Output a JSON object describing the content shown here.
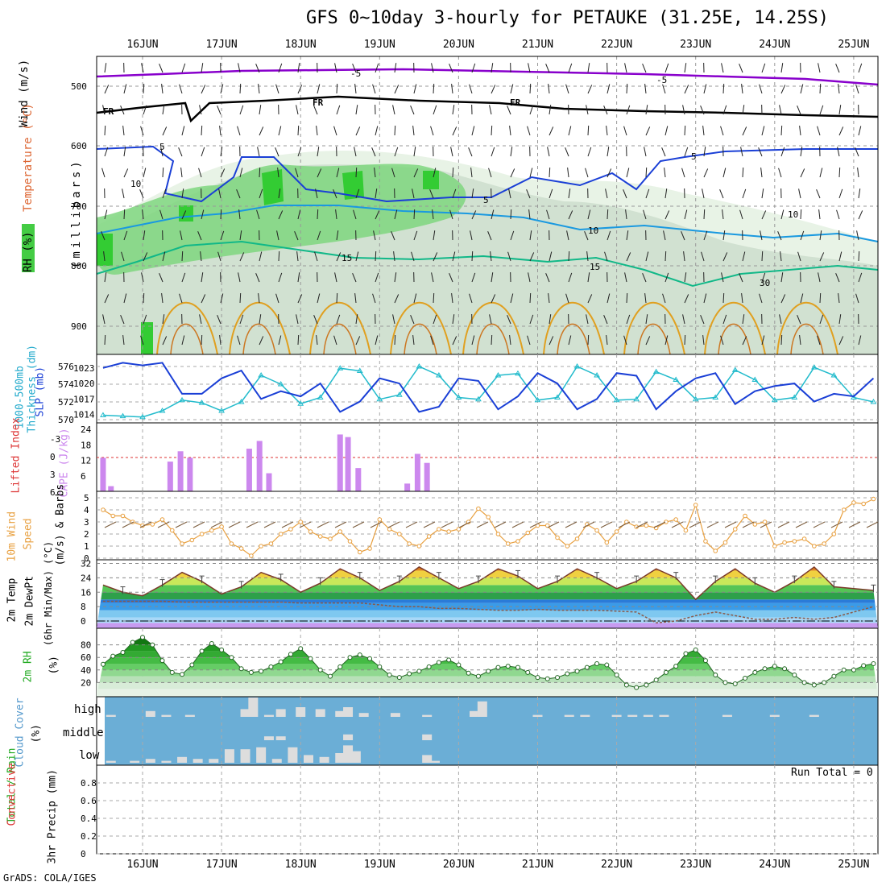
{
  "header": {
    "title": "GFS 0~10day 3-hourly for PETAUKE (31.25E, 14.25S)",
    "footer": "GrADS: COLA/IGES"
  },
  "dates": [
    "16JUN",
    "17JUN",
    "18JUN",
    "19JUN",
    "20JUN",
    "21JUN",
    "22JUN",
    "23JUN",
    "24JUN",
    "25JUN"
  ],
  "colors": {
    "rh_green": "#33cc33",
    "temp_purple": "#8800cc",
    "freezing": "#000000",
    "iso5": "#1a3fd6",
    "iso10": "#1a99e0",
    "iso15": "#11b888",
    "iso_warm": "#e0a020",
    "thickness": "#22bbcc",
    "slp": "#1a3fd6",
    "cape": "#cc88ee",
    "lifted": "#dd3333",
    "wind10m": "#e8a040",
    "cloud_bg": "#6baed6",
    "cloud_bar": "#dddddd"
  },
  "panels": {
    "upper": {
      "ylabel_wind": "Wind (m/s)",
      "ylabel_temp": "Temperature (°C)",
      "ylabel_rh": "RH (%)",
      "ylabel_mb": "(millibars)",
      "levels": [
        "500",
        "600",
        "700",
        "800",
        "900"
      ],
      "contour_labels": {
        "m5": "-5",
        "fr": "FR",
        "p5": "5",
        "p10": "10",
        "p15": "15",
        "rh10": "10",
        "rh30": "30"
      }
    },
    "thickness": {
      "ylabel_left": "1000-500mb",
      "ylabel_left2": "Thickness (dm)",
      "ylabel_right": "SLP (mb)",
      "ticks_left": [
        "576",
        "574",
        "572",
        "570"
      ],
      "ticks_right": [
        "1023",
        "1020",
        "1017",
        "1014"
      ]
    },
    "cape": {
      "ylabel_left": "Lifted Index",
      "ylabel_right": "CAPE (J/kg)",
      "ticks_left": [
        "-3",
        "0",
        "3",
        "6"
      ],
      "ticks_right": [
        "24",
        "18",
        "12",
        "6"
      ]
    },
    "wind10m": {
      "ylabel1": "10m Wind",
      "ylabel2": "Speed",
      "ylabel3": "(m/s) & Barbs",
      "ticks": [
        "5",
        "4",
        "3",
        "2",
        "1",
        "0"
      ]
    },
    "temp2m": {
      "ylabel1": "2m Temp",
      "ylabel2": "2m DewPt",
      "ylabel3": "(6hr Min/Max) (°C)",
      "ticks": [
        "32",
        "24",
        "16",
        "8",
        "0"
      ]
    },
    "rh2m": {
      "ylabel1": "2m RH",
      "ylabel2": "(%)",
      "ticks": [
        "80",
        "60",
        "40",
        "20"
      ]
    },
    "cloud": {
      "ylabel1": "Cloud Cover",
      "ylabel2": "(%)",
      "rows": [
        "high",
        "middle",
        "low"
      ]
    },
    "precip": {
      "ylabel1": "Total / Rain",
      "ylabel2": "Convective",
      "ylabel3": "3hr Precip (mm)",
      "ticks": [
        "0.8",
        "0.6",
        "0.4",
        "0.2",
        "0"
      ],
      "run_total": "Run Total = 0"
    }
  },
  "chart_data": [
    {
      "type": "line",
      "title": "1000-500mb Thickness (dm) / SLP (mb)",
      "x_unit": "day (16 = 16JUN 00Z)",
      "series": [
        {
          "name": "Thickness",
          "x": [
            15.5,
            15.75,
            16,
            16.25,
            16.5,
            16.75,
            17,
            17.25,
            17.5,
            17.75,
            18,
            18.25,
            18.5,
            18.75,
            19,
            19.25,
            19.5,
            19.75,
            20,
            20.25,
            20.5,
            20.75,
            21,
            21.25,
            21.5,
            21.75,
            22,
            22.25,
            22.5,
            22.75,
            23,
            23.25,
            23.5,
            23.75,
            24,
            24.25,
            24.5,
            24.75,
            25,
            25.25
          ],
          "values": [
            570.5,
            570.4,
            570.3,
            571.0,
            572.2,
            571.9,
            571.0,
            572.0,
            575.0,
            574.0,
            571.8,
            572.5,
            575.8,
            575.5,
            572.3,
            572.8,
            576.0,
            575.0,
            572.5,
            572.3,
            575.0,
            575.2,
            572.2,
            572.5,
            576.0,
            575.0,
            572.2,
            572.3,
            575.4,
            574.5,
            572.3,
            572.5,
            575.6,
            574.5,
            572.2,
            572.5,
            575.9,
            575.0,
            572.5,
            572.0
          ]
        },
        {
          "name": "SLP",
          "x": [
            15.5,
            15.75,
            16,
            16.25,
            16.5,
            16.75,
            17,
            17.25,
            17.5,
            17.75,
            18,
            18.25,
            18.5,
            18.75,
            19,
            19.25,
            19.5,
            19.75,
            20,
            20.25,
            20.5,
            20.75,
            21,
            21.25,
            21.5,
            21.75,
            22,
            22.25,
            22.5,
            22.75,
            23,
            23.25,
            23.5,
            23.75,
            24,
            24.25,
            24.5,
            24.75,
            25,
            25.25
          ],
          "values": [
            1023,
            1024,
            1023.5,
            1024,
            1018,
            1018,
            1021,
            1022.5,
            1017,
            1018.5,
            1017.5,
            1020,
            1014.5,
            1016.5,
            1021,
            1020,
            1014.5,
            1015.5,
            1021,
            1020.5,
            1015,
            1017.5,
            1022,
            1020,
            1015,
            1017,
            1022,
            1021.5,
            1015,
            1018.5,
            1021,
            1022,
            1016,
            1018.5,
            1019.5,
            1020,
            1016.5,
            1018,
            1017.5,
            1021
          ]
        }
      ],
      "ylim_left": [
        570,
        577
      ],
      "ylim_right": [
        1013,
        1025
      ]
    },
    {
      "type": "bar",
      "title": "CAPE (J/kg)",
      "x": [
        15.5,
        15.6,
        16.35,
        16.48,
        16.6,
        17.35,
        17.48,
        17.6,
        18.5,
        18.6,
        18.73,
        19.35,
        19.48,
        19.6
      ],
      "values": [
        13,
        2,
        11.5,
        15.5,
        13,
        16.5,
        19.5,
        7,
        22,
        21,
        9,
        3,
        14.5,
        11
      ],
      "ylim": [
        0,
        24
      ]
    },
    {
      "type": "line",
      "title": "10m Wind Speed (m/s)",
      "x": [
        15.5,
        15.625,
        15.75,
        15.875,
        16,
        16.125,
        16.25,
        16.375,
        16.5,
        16.625,
        16.75,
        16.875,
        17,
        17.125,
        17.25,
        17.375,
        17.5,
        17.625,
        17.75,
        17.875,
        18,
        18.125,
        18.25,
        18.375,
        18.5,
        18.625,
        18.75,
        18.875,
        19,
        19.125,
        19.25,
        19.375,
        19.5,
        19.625,
        19.75,
        19.875,
        20,
        20.125,
        20.25,
        20.375,
        20.5,
        20.625,
        20.75,
        20.875,
        21,
        21.125,
        21.25,
        21.375,
        21.5,
        21.625,
        21.75,
        21.875,
        22,
        22.125,
        22.25,
        22.375,
        22.5,
        22.625,
        22.75,
        22.875,
        23,
        23.125,
        23.25,
        23.375,
        23.5,
        23.625,
        23.75,
        23.875,
        24,
        24.125,
        24.25,
        24.375,
        24.5,
        24.625,
        24.75,
        24.875,
        25,
        25.125,
        25.25
      ],
      "values": [
        4,
        3.5,
        3.5,
        3,
        2.7,
        2.8,
        3.2,
        2.3,
        1.2,
        1.5,
        2,
        2.3,
        2.6,
        1.2,
        0.8,
        0.2,
        1,
        1.2,
        2,
        2.4,
        3,
        2.2,
        1.8,
        1.6,
        2.2,
        1.4,
        0.5,
        0.8,
        3.2,
        2.4,
        2,
        1.2,
        1,
        1.8,
        2.4,
        2.2,
        2.4,
        3,
        4.1,
        3.4,
        2,
        1.2,
        1.4,
        2.1,
        2.7,
        2.7,
        1.7,
        1,
        1.6,
        2.8,
        2.3,
        1.3,
        2.2,
        3,
        2.6,
        2.7,
        2.5,
        3,
        3.2,
        2.3,
        4.4,
        1.4,
        0.6,
        1.3,
        2.4,
        3.5,
        2.8,
        3,
        1,
        1.3,
        1.4,
        1.6,
        1,
        1.2,
        2,
        4,
        4.6,
        4.5,
        4.9
      ],
      "ylim": [
        0,
        5
      ]
    },
    {
      "type": "area",
      "title": "2m Temp / 2m DewPt (°C)",
      "x": [
        15.5,
        15.75,
        16,
        16.25,
        16.5,
        16.75,
        17,
        17.25,
        17.5,
        17.75,
        18,
        18.25,
        18.5,
        18.75,
        19,
        19.25,
        19.5,
        19.75,
        20,
        20.25,
        20.5,
        20.75,
        21,
        21.25,
        21.5,
        21.75,
        22,
        22.25,
        22.5,
        22.75,
        23,
        23.25,
        23.5,
        23.75,
        24,
        24.25,
        24.5,
        24.75,
        25,
        25.25
      ],
      "series": [
        {
          "name": "2m Temp",
          "values": [
            20,
            16,
            14,
            20,
            27,
            22,
            15,
            19,
            27,
            23,
            16,
            21,
            29,
            24,
            17,
            22,
            30,
            24,
            18,
            22,
            29,
            25,
            18,
            22,
            29,
            24,
            18,
            22,
            29,
            24,
            12,
            22,
            29,
            21,
            16,
            22,
            30,
            19,
            18,
            17
          ]
        },
        {
          "name": "2m DewPt",
          "values": [
            11,
            11,
            11,
            11,
            10.5,
            10.5,
            10.5,
            10.5,
            10.5,
            10.5,
            10,
            10,
            10,
            10,
            9,
            8,
            8,
            7,
            7,
            6.5,
            6,
            6,
            6.5,
            6,
            6,
            6,
            5.5,
            5,
            -1,
            0,
            3,
            5,
            3,
            1,
            1,
            2,
            1,
            2,
            5,
            8
          ]
        }
      ],
      "ylim": [
        -4,
        34
      ]
    },
    {
      "type": "area",
      "title": "2m RH (%)",
      "x": [
        15.5,
        15.625,
        15.75,
        15.875,
        16,
        16.125,
        16.25,
        16.375,
        16.5,
        16.625,
        16.75,
        16.875,
        17,
        17.125,
        17.25,
        17.375,
        17.5,
        17.625,
        17.75,
        17.875,
        18,
        18.125,
        18.25,
        18.375,
        18.5,
        18.625,
        18.75,
        18.875,
        19,
        19.125,
        19.25,
        19.375,
        19.5,
        19.625,
        19.75,
        19.875,
        20,
        20.125,
        20.25,
        20.375,
        20.5,
        20.625,
        20.75,
        20.875,
        21,
        21.125,
        21.25,
        21.375,
        21.5,
        21.625,
        21.75,
        21.875,
        22,
        22.125,
        22.25,
        22.375,
        22.5,
        22.625,
        22.75,
        22.875,
        23,
        23.125,
        23.25,
        23.375,
        23.5,
        23.625,
        23.75,
        23.875,
        24,
        24.125,
        24.25,
        24.375,
        24.5,
        24.625,
        24.75,
        24.875,
        25,
        25.125,
        25.25
      ],
      "values": [
        49,
        62,
        68,
        84,
        92,
        80,
        55,
        36,
        33,
        48,
        70,
        82,
        72,
        60,
        42,
        36,
        38,
        45,
        53,
        65,
        74,
        58,
        40,
        30,
        45,
        60,
        64,
        58,
        45,
        32,
        28,
        34,
        38,
        45,
        52,
        56,
        48,
        35,
        30,
        38,
        44,
        46,
        44,
        36,
        28,
        26,
        28,
        34,
        38,
        44,
        50,
        48,
        32,
        16,
        12,
        16,
        24,
        36,
        46,
        66,
        72,
        55,
        32,
        20,
        18,
        27,
        36,
        42,
        46,
        42,
        32,
        20,
        16,
        20,
        30,
        40,
        40,
        47,
        50
      ],
      "ylim": [
        0,
        100
      ]
    },
    {
      "type": "bar",
      "title": "Cloud Cover (%)",
      "series": [
        {
          "name": "high",
          "x": [
            15.6,
            16.1,
            16.3,
            16.6,
            17.3,
            17.4,
            17.6,
            17.75,
            18,
            18.25,
            18.5,
            18.6,
            18.8,
            19.2,
            19.6,
            20.2,
            20.3,
            21,
            21.4,
            21.6,
            22.0,
            22.2,
            22.4,
            22.6,
            23.4,
            24,
            24.5
          ],
          "values": [
            10,
            30,
            10,
            10,
            40,
            100,
            10,
            40,
            50,
            40,
            30,
            50,
            20,
            20,
            10,
            30,
            80,
            10,
            10,
            10,
            10,
            10,
            10,
            10,
            10,
            10,
            10
          ]
        },
        {
          "name": "middle",
          "x": [
            17.6,
            17.75,
            18.6,
            19.6
          ],
          "values": [
            20,
            20,
            30,
            30
          ]
        },
        {
          "name": "low",
          "x": [
            15.6,
            15.9,
            16.1,
            16.3,
            16.5,
            16.7,
            16.9,
            17.1,
            17.3,
            17.5,
            17.7,
            17.9,
            18.1,
            18.3,
            18.5,
            18.6,
            18.7,
            19.6,
            19.7
          ],
          "values": [
            10,
            10,
            20,
            10,
            30,
            20,
            20,
            70,
            70,
            80,
            20,
            80,
            40,
            30,
            50,
            90,
            60,
            40,
            10
          ]
        }
      ],
      "ylim": [
        0,
        100
      ]
    },
    {
      "type": "bar",
      "title": "3hr Precip (mm)",
      "values": [],
      "ylim": [
        0,
        1
      ]
    }
  ]
}
